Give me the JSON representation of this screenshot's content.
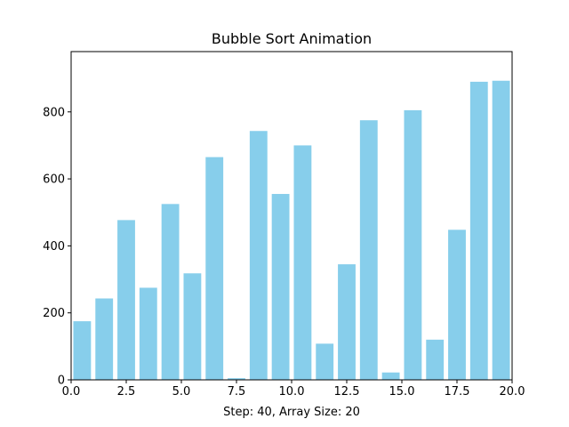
{
  "chart_data": {
    "type": "bar",
    "title": "Bubble Sort Animation",
    "xlabel": "Step: 40, Array Size: 20",
    "ylabel": "",
    "x": [
      0,
      1,
      2,
      3,
      4,
      5,
      6,
      7,
      8,
      9,
      10,
      11,
      12,
      13,
      14,
      15,
      16,
      17,
      18,
      19
    ],
    "values": [
      175,
      243,
      477,
      275,
      525,
      318,
      665,
      5,
      743,
      555,
      700,
      108,
      345,
      775,
      22,
      805,
      120,
      448,
      890,
      893
    ],
    "bar_width": 0.8,
    "xlim": [
      0,
      20
    ],
    "ylim": [
      0,
      980
    ],
    "xticks": [
      0.0,
      2.5,
      5.0,
      7.5,
      10.0,
      12.5,
      15.0,
      17.5,
      20.0
    ],
    "xtick_labels": [
      "0.0",
      "2.5",
      "5.0",
      "7.5",
      "10.0",
      "12.5",
      "15.0",
      "17.5",
      "20.0"
    ],
    "yticks": [
      0,
      200,
      400,
      600,
      800
    ],
    "ytick_labels": [
      "0",
      "200",
      "400",
      "600",
      "800"
    ],
    "bar_color": "#87ceeb",
    "grid": false
  }
}
